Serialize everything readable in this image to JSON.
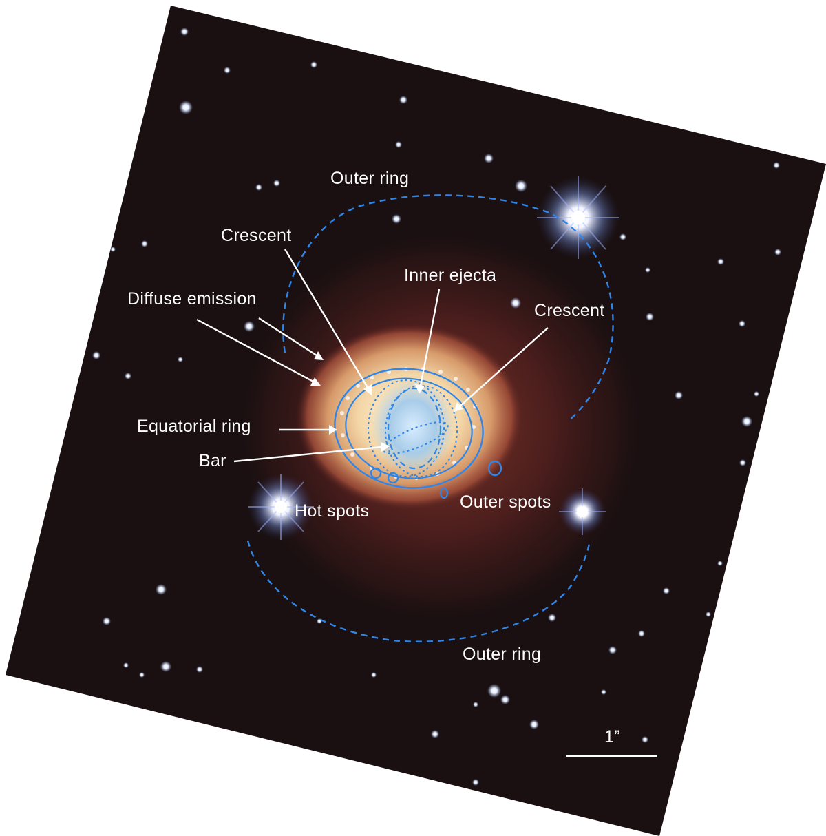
{
  "labels": {
    "outer_ring_top": "Outer ring",
    "crescent_left": "Crescent",
    "inner_ejecta": "Inner ejecta",
    "diffuse_emission": "Diffuse emission",
    "crescent_right": "Crescent",
    "equatorial_ring": "Equatorial ring",
    "bar": "Bar",
    "hot_spots": "Hot spots",
    "outer_spots": "Outer spots",
    "outer_ring_bottom": "Outer ring",
    "scale_bar": "1”"
  },
  "colors": {
    "annotation_blue": "#2f86e8",
    "label_white": "#ffffff",
    "sky_background": "#1a1011"
  }
}
